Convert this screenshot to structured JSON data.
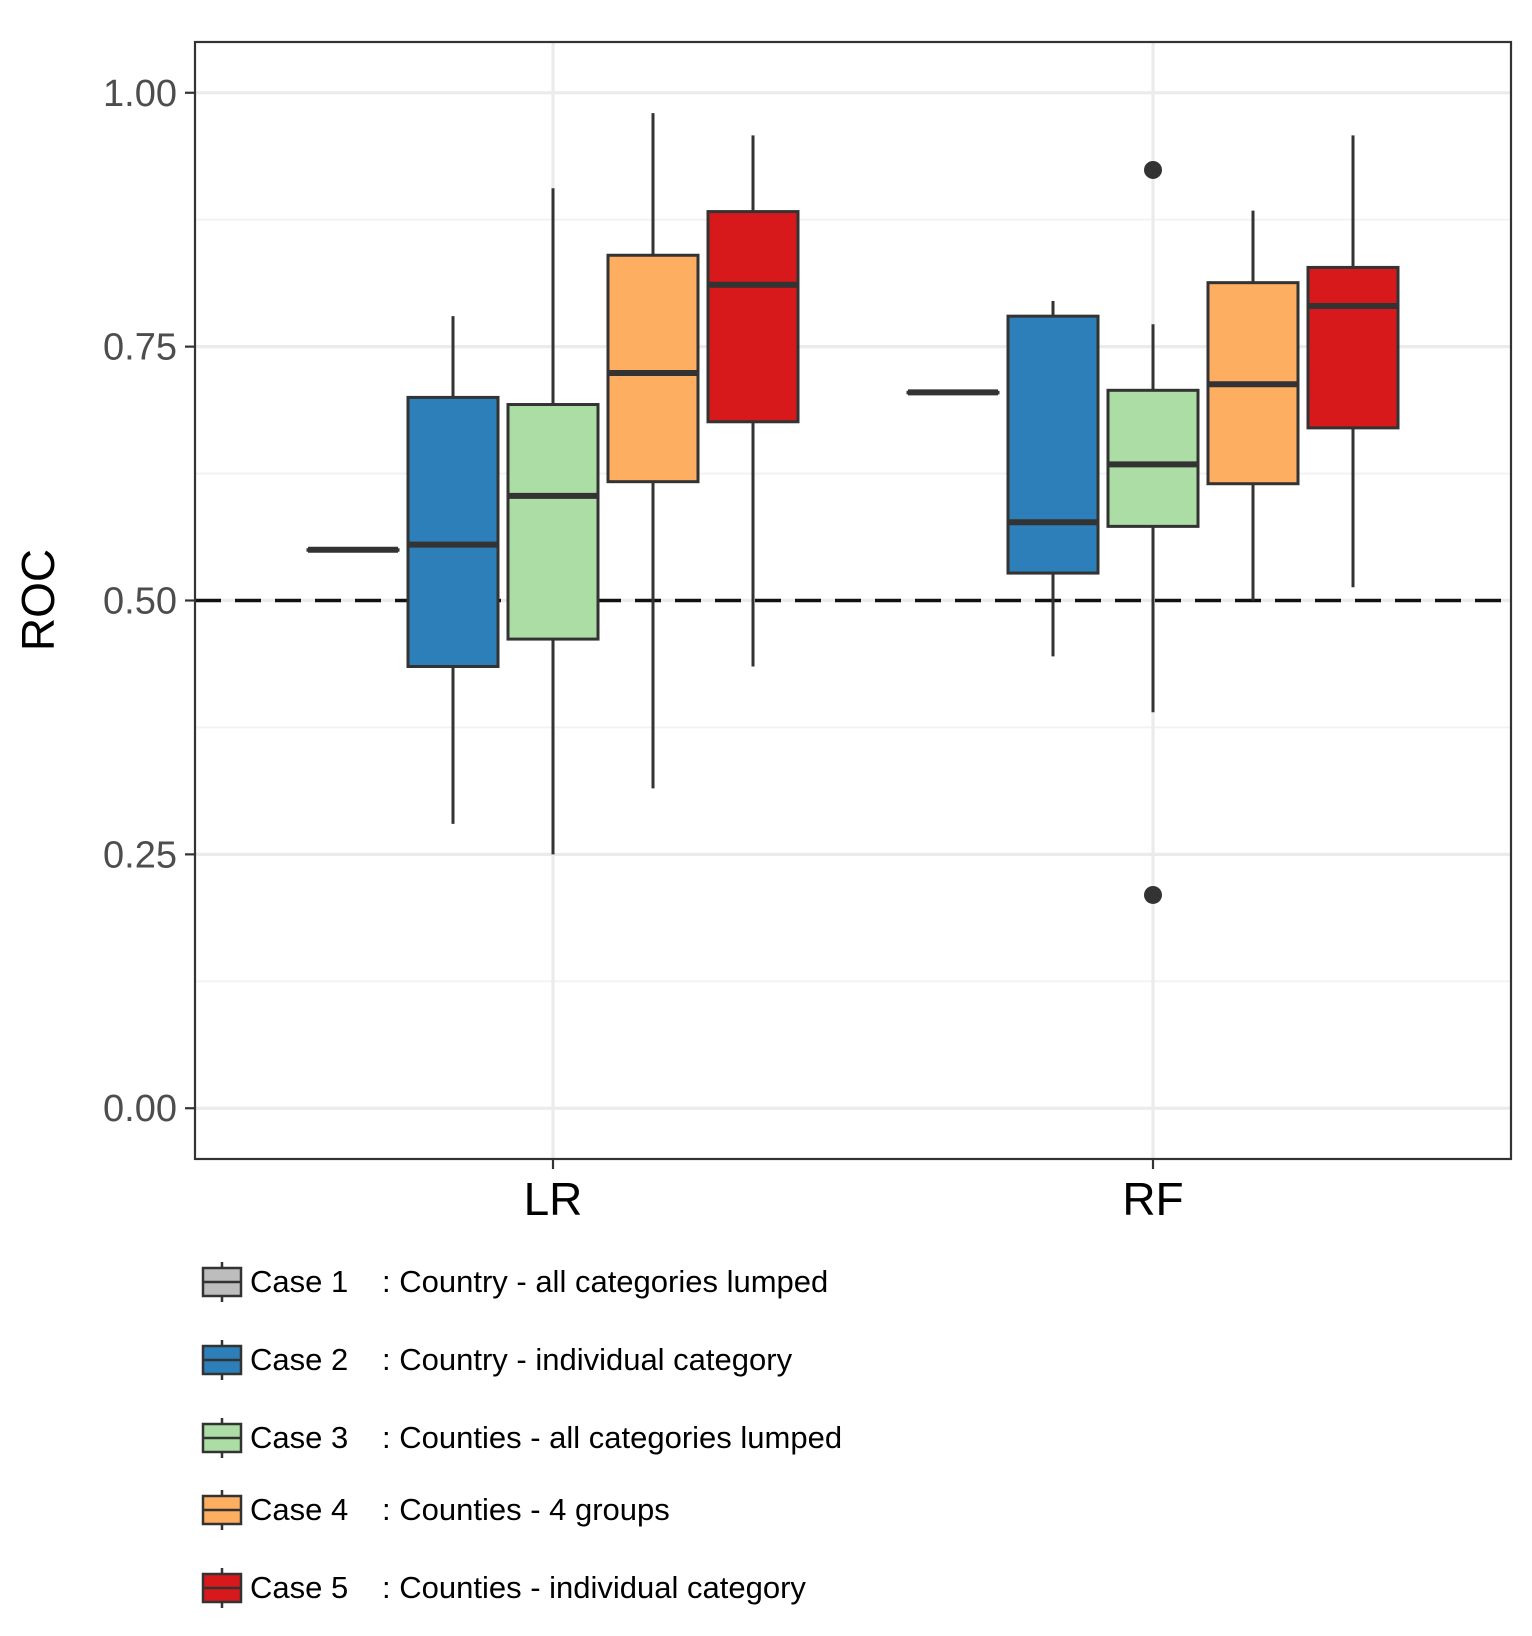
{
  "chart_data": {
    "type": "boxplot",
    "title": "",
    "xlabel": "",
    "ylabel": "ROC",
    "ylim": [
      -0.05,
      1.05
    ],
    "yticks": [
      0.0,
      0.25,
      0.5,
      0.75,
      1.0
    ],
    "ytick_labels": [
      "0.00",
      "0.25",
      "0.50",
      "0.75",
      "1.00"
    ],
    "reference_line": {
      "y": 0.5,
      "style": "dashed"
    },
    "grid": true,
    "categories": [
      "LR",
      "RF"
    ],
    "series": [
      {
        "name": "Case 1",
        "description": ": Country - all categories lumped",
        "color": "#BDBDBD",
        "boxes": [
          {
            "category": "LR",
            "min": 0.55,
            "q1": 0.55,
            "median": 0.55,
            "q3": 0.55,
            "max": 0.55,
            "outliers": []
          },
          {
            "category": "RF",
            "min": 0.705,
            "q1": 0.705,
            "median": 0.705,
            "q3": 0.705,
            "max": 0.705,
            "outliers": []
          }
        ]
      },
      {
        "name": "Case 2",
        "description": ": Country - individual category",
        "color": "#2C7FB8",
        "boxes": [
          {
            "category": "LR",
            "min": 0.28,
            "q1": 0.435,
            "median": 0.555,
            "q3": 0.7,
            "max": 0.78,
            "outliers": []
          },
          {
            "category": "RF",
            "min": 0.445,
            "q1": 0.527,
            "median": 0.577,
            "q3": 0.78,
            "max": 0.795,
            "outliers": []
          }
        ]
      },
      {
        "name": "Case 3",
        "description": ": Counties - all categories lumped",
        "color": "#ABDDA4",
        "boxes": [
          {
            "category": "LR",
            "min": 0.25,
            "q1": 0.462,
            "median": 0.603,
            "q3": 0.693,
            "max": 0.906,
            "outliers": []
          },
          {
            "category": "RF",
            "min": 0.39,
            "q1": 0.573,
            "median": 0.634,
            "q3": 0.707,
            "max": 0.772,
            "outliers": [
              0.924,
              0.21
            ]
          }
        ]
      },
      {
        "name": "Case 4",
        "description": ": Counties - 4 groups",
        "color": "#FDAE61",
        "boxes": [
          {
            "category": "LR",
            "min": 0.315,
            "q1": 0.617,
            "median": 0.724,
            "q3": 0.84,
            "max": 0.98,
            "outliers": []
          },
          {
            "category": "RF",
            "min": 0.5,
            "q1": 0.615,
            "median": 0.713,
            "q3": 0.813,
            "max": 0.884,
            "outliers": []
          }
        ]
      },
      {
        "name": "Case 5",
        "description": ": Counties - individual category",
        "color": "#D7191C",
        "boxes": [
          {
            "category": "LR",
            "min": 0.435,
            "q1": 0.676,
            "median": 0.811,
            "q3": 0.883,
            "max": 0.958,
            "outliers": []
          },
          {
            "category": "RF",
            "min": 0.513,
            "q1": 0.67,
            "median": 0.79,
            "q3": 0.828,
            "max": 0.958,
            "outliers": []
          }
        ]
      }
    ],
    "legend_position": "bottom"
  }
}
